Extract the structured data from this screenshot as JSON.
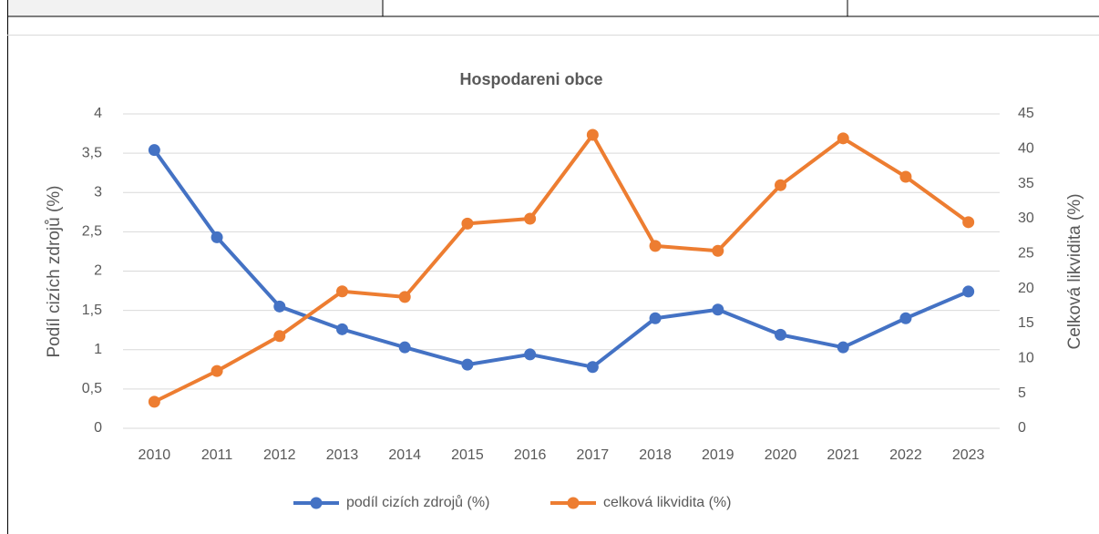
{
  "chart_data": {
    "type": "line",
    "title": "Hospodareni obce",
    "categories": [
      "2010",
      "2011",
      "2012",
      "2013",
      "2014",
      "2015",
      "2016",
      "2017",
      "2018",
      "2019",
      "2020",
      "2021",
      "2022",
      "2023"
    ],
    "ylabel": "Podíl cizích zdrojů (%)",
    "y2label": "Celková likvidita (%)",
    "ylim": [
      0,
      4
    ],
    "yticks": [
      0,
      {
        "value": 0.5,
        "label": "0,5"
      },
      1,
      {
        "value": 1.5,
        "label": "1,5"
      },
      2,
      {
        "value": 2.5,
        "label": "2,5"
      },
      3,
      {
        "value": 3.5,
        "label": "3,5"
      },
      4
    ],
    "y2lim": [
      0,
      45
    ],
    "y2ticks": [
      0,
      5,
      10,
      15,
      20,
      25,
      30,
      35,
      40,
      45
    ],
    "grid": true,
    "legend": "bottom",
    "series": [
      {
        "name": "podíl cizích zdrojů (%)",
        "color": "#4472c4",
        "values": [
          3.54,
          2.43,
          1.55,
          1.26,
          1.03,
          0.81,
          0.94,
          0.78,
          1.4,
          1.51,
          1.19,
          1.03,
          1.4,
          1.74
        ]
      },
      {
        "name": "celková likvidita (%)",
        "color": "#ed7d31",
        "axis": "y2",
        "values": [
          3.8,
          8.2,
          13.2,
          19.6,
          18.8,
          29.3,
          30.0,
          42.0,
          26.1,
          25.4,
          34.8,
          41.5,
          36.0,
          29.5
        ]
      }
    ]
  }
}
